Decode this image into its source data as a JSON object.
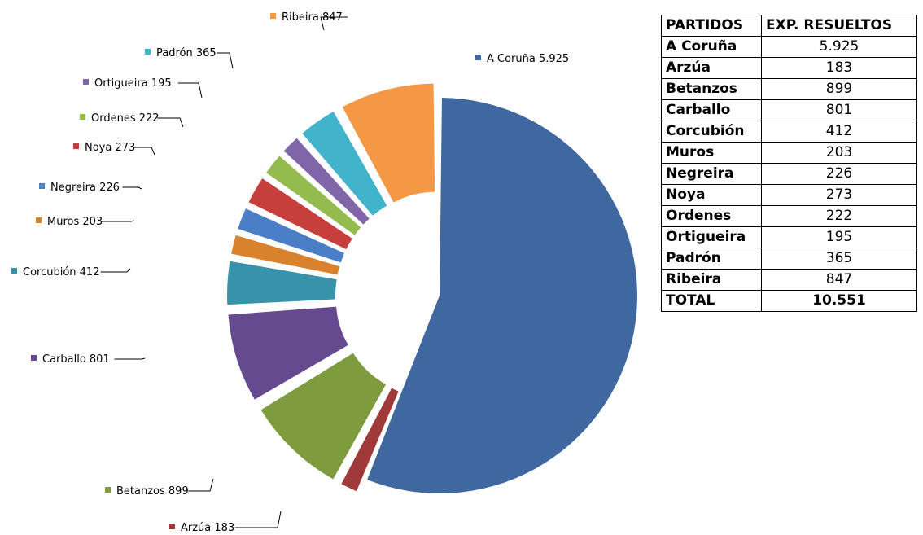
{
  "chart_data": {
    "type": "pie",
    "slices": [
      {
        "label": "A Coruña",
        "value": 5925,
        "display": "5.925",
        "color": "#3F67A0",
        "label_text": "A Coruña 5.925"
      },
      {
        "label": "Arzúa",
        "value": 183,
        "display": "183",
        "color": "#A0393A",
        "label_text": "Arzúa 183"
      },
      {
        "label": "Betanzos",
        "value": 899,
        "display": "899",
        "color": "#7E9B3E",
        "label_text": "Betanzos 899"
      },
      {
        "label": "Carballo",
        "value": 801,
        "display": "801",
        "color": "#654A8F",
        "label_text": "Carballo 801"
      },
      {
        "label": "Corcubión",
        "value": 412,
        "display": "412",
        "color": "#3893AA",
        "label_text": "Corcubión 412"
      },
      {
        "label": "Muros",
        "value": 203,
        "display": "203",
        "color": "#D9822E",
        "label_text": "Muros 203"
      },
      {
        "label": "Negreira",
        "value": 226,
        "display": "226",
        "color": "#4A7EC6",
        "label_text": "Negreira 226"
      },
      {
        "label": "Noya",
        "value": 273,
        "display": "273",
        "color": "#C73F3C",
        "label_text": "Noya 273"
      },
      {
        "label": "Ordenes",
        "value": 222,
        "display": "222",
        "color": "#93BB4E",
        "label_text": "Ordenes 222"
      },
      {
        "label": "Ortigueira",
        "value": 195,
        "display": "195",
        "color": "#8066A8",
        "label_text": "Ortigueira 195"
      },
      {
        "label": "Padrón",
        "value": 365,
        "display": "365",
        "color": "#41B3CB",
        "label_text": "Padrón 365"
      },
      {
        "label": "Ribeira",
        "value": 847,
        "display": "847",
        "color": "#F49845",
        "label_text": "Ribeira 847"
      }
    ]
  },
  "table": {
    "headers": [
      "PARTIDOS",
      "EXP. RESUELTOS"
    ],
    "rows": [
      [
        "A Coruña",
        "5.925"
      ],
      [
        "Arzúa",
        "183"
      ],
      [
        "Betanzos",
        "899"
      ],
      [
        "Carballo",
        "801"
      ],
      [
        "Corcubión",
        "412"
      ],
      [
        "Muros",
        "203"
      ],
      [
        "Negreira",
        "226"
      ],
      [
        "Noya",
        "273"
      ],
      [
        "Ordenes",
        "222"
      ],
      [
        "Ortigueira",
        "195"
      ],
      [
        "Padrón",
        "365"
      ],
      [
        "Ribeira",
        "847"
      ]
    ],
    "total_label": "TOTAL",
    "total_value": "10.551"
  }
}
